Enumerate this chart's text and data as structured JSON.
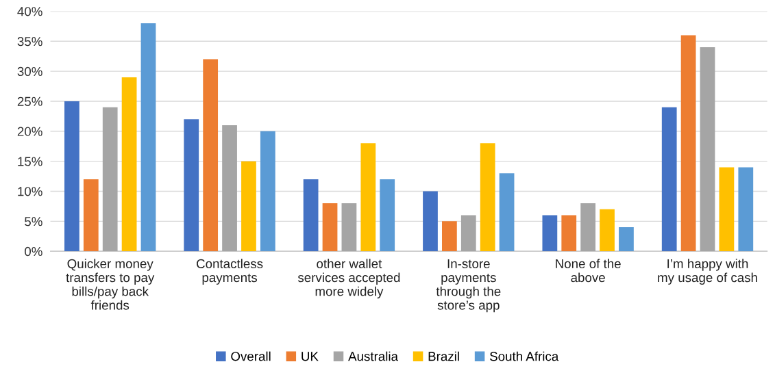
{
  "chart_data": {
    "type": "bar",
    "categories": [
      "Quicker money\ntransfers to pay\nbills/pay back\nfriends",
      "Contactless\npayments",
      "other wallet\nservices accepted\nmore widely",
      "In-store\npayments\nthrough the\nstore’s app",
      "None of the\nabove",
      "I’m happy with\nmy usage of cash"
    ],
    "series": [
      {
        "name": "Overall",
        "color": "#4472c4",
        "values": [
          25,
          22,
          12,
          10,
          6,
          24
        ]
      },
      {
        "name": "UK",
        "color": "#ed7d31",
        "values": [
          12,
          32,
          8,
          5,
          6,
          36
        ]
      },
      {
        "name": "Australia",
        "color": "#a5a5a5",
        "values": [
          24,
          21,
          8,
          6,
          8,
          34
        ]
      },
      {
        "name": "Brazil",
        "color": "#ffc000",
        "values": [
          29,
          15,
          18,
          18,
          7,
          14
        ]
      },
      {
        "name": "South Africa",
        "color": "#5b9bd5",
        "values": [
          38,
          20,
          12,
          13,
          4,
          14
        ]
      }
    ],
    "ylim": [
      0,
      40
    ],
    "yticks": [
      {
        "value": 0,
        "label": "0%"
      },
      {
        "value": 5,
        "label": "5%"
      },
      {
        "value": 10,
        "label": "10%"
      },
      {
        "value": 15,
        "label": "15%"
      },
      {
        "value": 20,
        "label": "20%"
      },
      {
        "value": 25,
        "label": "25%"
      },
      {
        "value": 30,
        "label": "30%"
      },
      {
        "value": 35,
        "label": "35%"
      },
      {
        "value": 40,
        "label": "40%"
      }
    ],
    "grid": "y",
    "legend": "bottom"
  }
}
